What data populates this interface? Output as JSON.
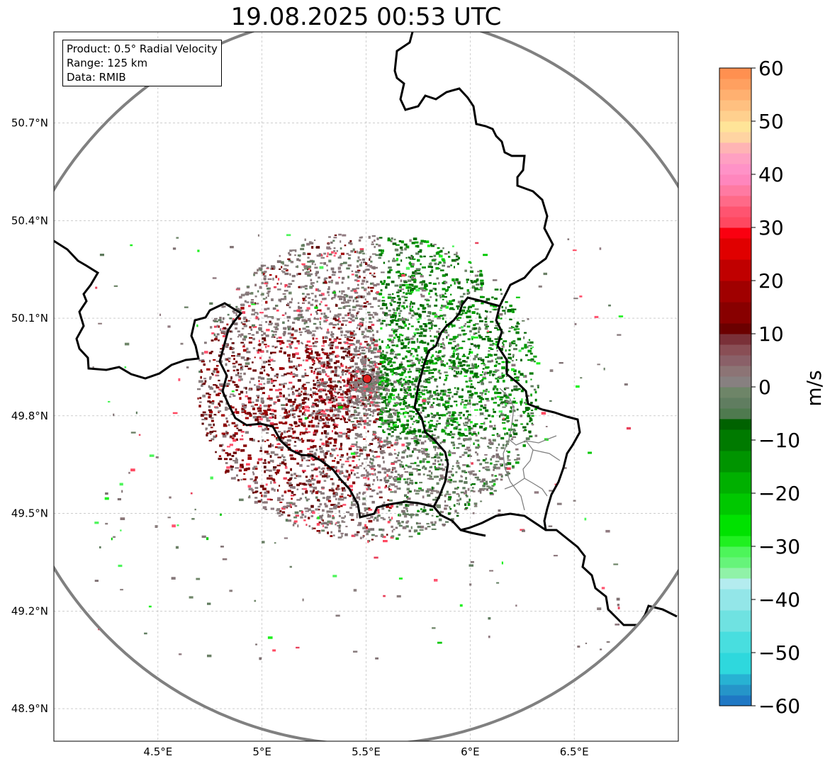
{
  "title": "19.08.2025 00:53 UTC",
  "info": {
    "line1": "Product: 0.5° Radial Velocity",
    "line2": "Range: 125 km",
    "line3": "Data: RMIB"
  },
  "map": {
    "lon_range": [
      4.0,
      7.0
    ],
    "lat_range": [
      48.8,
      50.98
    ],
    "lon_ticks": [
      {
        "value": 4.5,
        "label": "4.5°E"
      },
      {
        "value": 5.0,
        "label": "5°E"
      },
      {
        "value": 5.5,
        "label": "5.5°E"
      },
      {
        "value": 6.0,
        "label": "6°E"
      },
      {
        "value": 6.5,
        "label": "6.5°E"
      }
    ],
    "lat_ticks": [
      {
        "value": 48.9,
        "label": "48.9°N"
      },
      {
        "value": 49.2,
        "label": "49.2°N"
      },
      {
        "value": 49.5,
        "label": "49.5°N"
      },
      {
        "value": 49.8,
        "label": "49.8°N"
      },
      {
        "value": 50.1,
        "label": "50.1°N"
      },
      {
        "value": 50.4,
        "label": "50.4°N"
      },
      {
        "value": 50.7,
        "label": "50.7°N"
      }
    ],
    "radar_site": {
      "lon": 5.505,
      "lat": 49.914
    },
    "range_km": 125,
    "colors": {
      "range_ring": "#808080",
      "border": "#000000",
      "region_border": "#808080",
      "radar_dot": "#e0201e",
      "grid": "#b0b0b0"
    }
  },
  "colorbar": {
    "label": "m/s",
    "min": -60,
    "max": 60,
    "ticks": [
      {
        "value": 60,
        "label": "60"
      },
      {
        "value": 50,
        "label": "50"
      },
      {
        "value": 40,
        "label": "40"
      },
      {
        "value": 30,
        "label": "30"
      },
      {
        "value": 20,
        "label": "20"
      },
      {
        "value": 10,
        "label": "10"
      },
      {
        "value": 0,
        "label": "0"
      },
      {
        "value": -10,
        "label": "−10"
      },
      {
        "value": -20,
        "label": "−20"
      },
      {
        "value": -30,
        "label": "−30"
      },
      {
        "value": -40,
        "label": "−40"
      },
      {
        "value": -50,
        "label": "−50"
      },
      {
        "value": -60,
        "label": "−60"
      }
    ],
    "stops": [
      {
        "from": -60,
        "to": -58,
        "color": "#1f78c4"
      },
      {
        "from": -58,
        "to": -56,
        "color": "#2595c9"
      },
      {
        "from": -56,
        "to": -54,
        "color": "#27b2d3"
      },
      {
        "from": -54,
        "to": -50,
        "color": "#2ed8dd"
      },
      {
        "from": -50,
        "to": -46,
        "color": "#48dedf"
      },
      {
        "from": -46,
        "to": -42,
        "color": "#6fe2e1"
      },
      {
        "from": -42,
        "to": -38,
        "color": "#93e6e8"
      },
      {
        "from": -38,
        "to": -36,
        "color": "#b4ecef"
      },
      {
        "from": -36,
        "to": -34,
        "color": "#90f2a8"
      },
      {
        "from": -34,
        "to": -32,
        "color": "#66f47a"
      },
      {
        "from": -32,
        "to": -30,
        "color": "#4df55a"
      },
      {
        "from": -30,
        "to": -28,
        "color": "#20f020"
      },
      {
        "from": -28,
        "to": -24,
        "color": "#00e200"
      },
      {
        "from": -24,
        "to": -20,
        "color": "#00c800"
      },
      {
        "from": -20,
        "to": -16,
        "color": "#00b000"
      },
      {
        "from": -16,
        "to": -12,
        "color": "#009400"
      },
      {
        "from": -12,
        "to": -8,
        "color": "#007a00"
      },
      {
        "from": -8,
        "to": -6,
        "color": "#006200"
      },
      {
        "from": -6,
        "to": -4,
        "color": "#4f7a4f"
      },
      {
        "from": -4,
        "to": -2,
        "color": "#607d60"
      },
      {
        "from": -2,
        "to": 0,
        "color": "#6e8568"
      },
      {
        "from": 0,
        "to": 2,
        "color": "#878080"
      },
      {
        "from": 2,
        "to": 4,
        "color": "#8c7475"
      },
      {
        "from": 4,
        "to": 6,
        "color": "#8a6068"
      },
      {
        "from": 6,
        "to": 8,
        "color": "#894e55"
      },
      {
        "from": 8,
        "to": 10,
        "color": "#7a3038"
      },
      {
        "from": 10,
        "to": 12,
        "color": "#6b0000"
      },
      {
        "from": 12,
        "to": 16,
        "color": "#880000"
      },
      {
        "from": 16,
        "to": 20,
        "color": "#a00000"
      },
      {
        "from": 20,
        "to": 24,
        "color": "#c00000"
      },
      {
        "from": 24,
        "to": 28,
        "color": "#e00000"
      },
      {
        "from": 28,
        "to": 30,
        "color": "#fa0010"
      },
      {
        "from": 30,
        "to": 32,
        "color": "#ff4860"
      },
      {
        "from": 32,
        "to": 34,
        "color": "#ff5470"
      },
      {
        "from": 34,
        "to": 36,
        "color": "#ff6a88"
      },
      {
        "from": 36,
        "to": 38,
        "color": "#ff7aa2"
      },
      {
        "from": 38,
        "to": 40,
        "color": "#ff86bd"
      },
      {
        "from": 40,
        "to": 42,
        "color": "#ff92c7"
      },
      {
        "from": 42,
        "to": 44,
        "color": "#ffa0c2"
      },
      {
        "from": 44,
        "to": 46,
        "color": "#ffb4b4"
      },
      {
        "from": 46,
        "to": 48,
        "color": "#ffd4a2"
      },
      {
        "from": 48,
        "to": 50,
        "color": "#ffe498"
      },
      {
        "from": 50,
        "to": 52,
        "color": "#ffd08e"
      },
      {
        "from": 52,
        "to": 54,
        "color": "#ffc080"
      },
      {
        "from": 54,
        "to": 56,
        "color": "#ffb070"
      },
      {
        "from": 56,
        "to": 58,
        "color": "#ffa060"
      },
      {
        "from": 58,
        "to": 60,
        "color": "#ff9050"
      }
    ]
  }
}
